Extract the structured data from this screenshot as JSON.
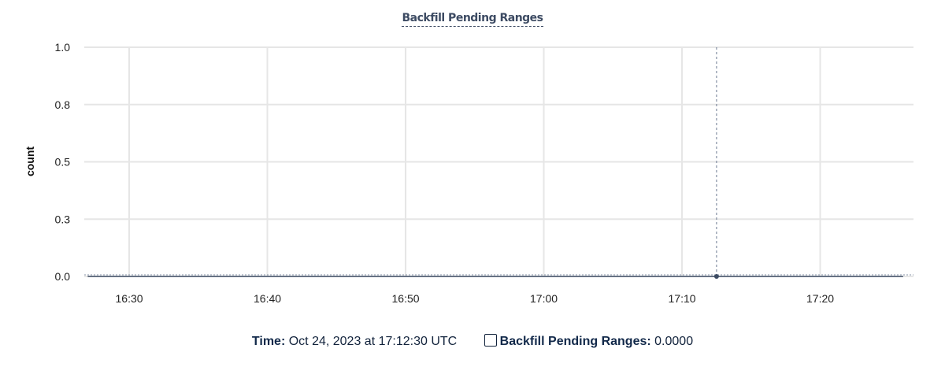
{
  "chart_data": {
    "type": "line",
    "title": "Backfill Pending Ranges",
    "ylabel": "count",
    "xlabel": "",
    "ylim": [
      0,
      1
    ],
    "yticks": [
      0,
      0.25,
      0.5,
      0.75,
      1.0
    ],
    "ytick_labels": [
      "0.0",
      "0.3",
      "0.5",
      "0.8",
      "1.0"
    ],
    "xlim": [
      "16:26:45",
      "17:26:45"
    ],
    "xticks": [
      "16:30",
      "16:40",
      "16:50",
      "17:00",
      "17:10",
      "17:20"
    ],
    "grid": true,
    "series": [
      {
        "name": "Backfill Pending Ranges",
        "color": "#3d4b63",
        "x": [
          "16:27",
          "16:30",
          "16:40",
          "16:50",
          "17:00",
          "17:10",
          "17:12:30",
          "17:20",
          "17:26"
        ],
        "y": [
          0,
          0,
          0,
          0,
          0,
          0,
          0,
          0,
          0
        ]
      }
    ],
    "hover": {
      "x": "17:12:30",
      "y": 0
    }
  },
  "legend": {
    "time_label": "Time:",
    "time_value": "Oct 24, 2023 at 17:12:30 UTC",
    "series_label": "Backfill Pending Ranges:",
    "series_value": "0.0000"
  }
}
